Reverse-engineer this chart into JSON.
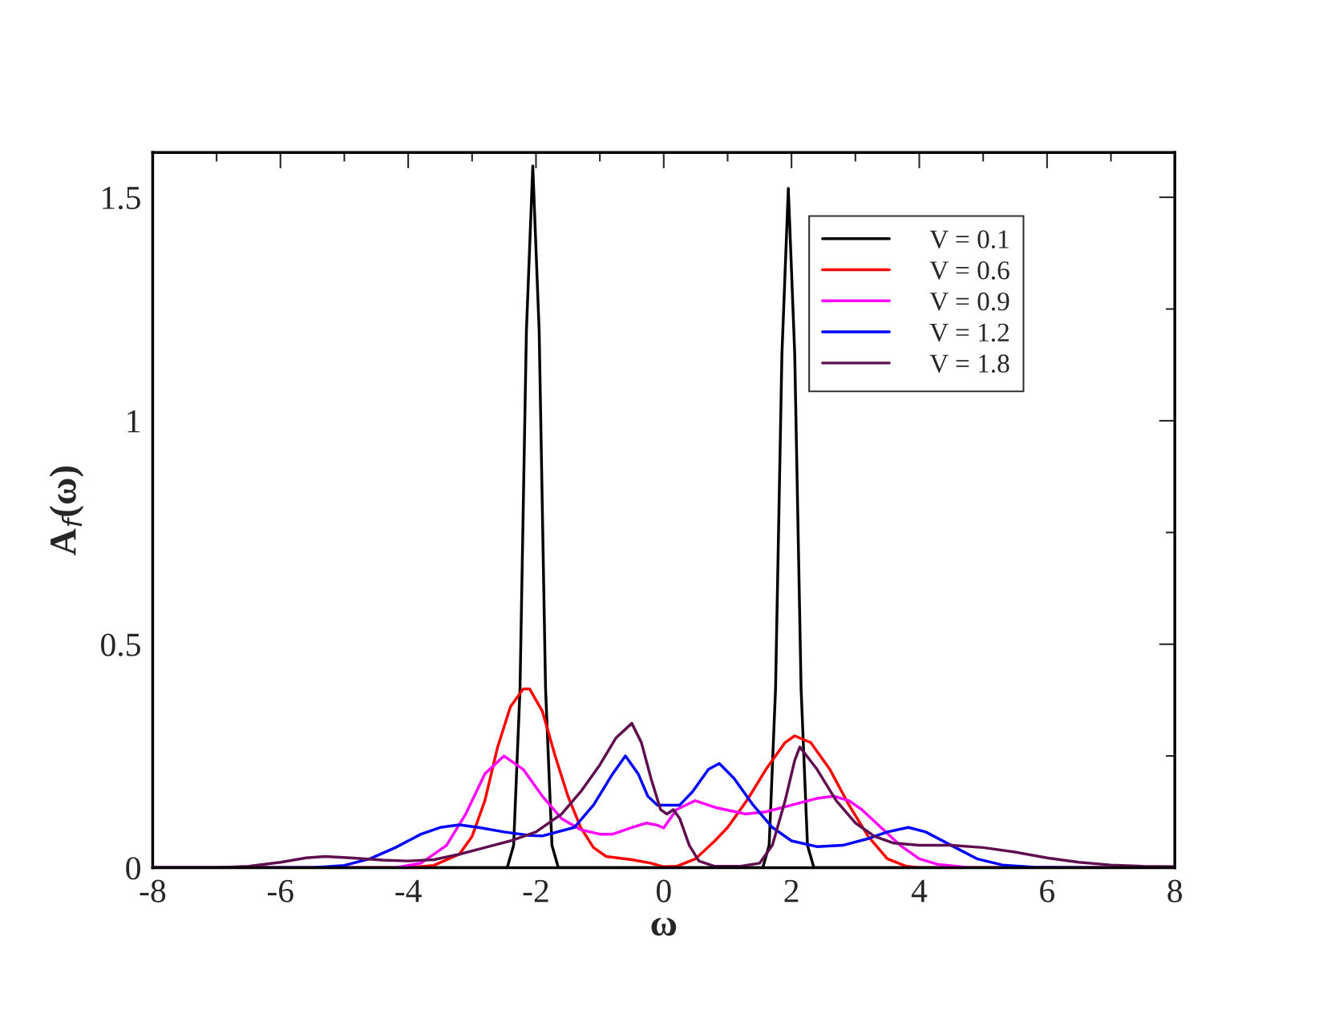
{
  "chart_data": {
    "type": "line",
    "xlabel": "ω",
    "ylabel": "A$_{f}$(ω)",
    "xlim": [
      -8,
      8
    ],
    "ylim": [
      0,
      1.6
    ],
    "xticks": [
      -8,
      {
        "value": -7,
        "label": null
      },
      -6,
      {
        "value": -5,
        "label": null
      },
      -4,
      {
        "value": -3,
        "label": null
      },
      -2,
      {
        "value": -1,
        "label": null
      },
      0,
      {
        "value": 1,
        "label": null
      },
      2,
      {
        "value": 3,
        "label": null
      },
      4,
      {
        "value": 5,
        "label": null
      },
      6,
      {
        "value": 7,
        "label": null
      },
      8
    ],
    "yticks": [
      0,
      {
        "value": 0.25,
        "label": null
      },
      0.5,
      {
        "value": 0.75,
        "label": null
      },
      1,
      {
        "value": 1.25,
        "label": null
      },
      1.5
    ],
    "legend": "top right",
    "grid": false,
    "line_style": "solid",
    "marker": "none",
    "series": [
      {
        "name": "V = 0.1",
        "color": "#000000",
        "x": [
          -8,
          -2.45,
          -2.35,
          -2.25,
          -2.15,
          -2.05,
          -1.95,
          -1.85,
          -1.75,
          -1.65,
          1.55,
          1.65,
          1.75,
          1.85,
          1.95,
          2.05,
          2.15,
          2.25,
          2.35,
          8
        ],
        "values": [
          0,
          0,
          0.05,
          0.4,
          1.2,
          1.57,
          1.2,
          0.4,
          0.05,
          0,
          0,
          0.05,
          0.4,
          1.15,
          1.52,
          1.15,
          0.4,
          0.05,
          0,
          0
        ]
      },
      {
        "name": "V = 0.6",
        "color": "#ff0000",
        "x": [
          -8,
          -4,
          -3.6,
          -3.2,
          -3.0,
          -2.8,
          -2.6,
          -2.4,
          -2.2,
          -2.1,
          -1.9,
          -1.7,
          -1.5,
          -1.3,
          -1.1,
          -0.9,
          -0.5,
          -0.2,
          0,
          0.2,
          0.5,
          0.8,
          1.0,
          1.3,
          1.6,
          1.9,
          2.05,
          2.3,
          2.6,
          2.9,
          3.2,
          3.5,
          3.8,
          4,
          8
        ],
        "values": [
          0,
          0,
          0.005,
          0.03,
          0.07,
          0.15,
          0.27,
          0.36,
          0.4,
          0.4,
          0.35,
          0.25,
          0.16,
          0.09,
          0.045,
          0.025,
          0.018,
          0.01,
          0.002,
          0.003,
          0.02,
          0.06,
          0.09,
          0.15,
          0.22,
          0.28,
          0.295,
          0.28,
          0.22,
          0.14,
          0.07,
          0.02,
          0.003,
          0,
          0
        ]
      },
      {
        "name": "V = 0.9",
        "color": "#ff00ff",
        "x": [
          -8,
          -4.2,
          -3.8,
          -3.4,
          -3.1,
          -2.8,
          -2.5,
          -2.2,
          -1.9,
          -1.6,
          -1.3,
          -1.0,
          -0.8,
          -0.5,
          -0.27,
          -0.1,
          0.0,
          0.2,
          0.49,
          0.8,
          1.28,
          1.6,
          2.0,
          2.4,
          2.66,
          2.9,
          3.1,
          3.4,
          3.7,
          4.0,
          4.3,
          4.8,
          8
        ],
        "values": [
          0,
          0,
          0.01,
          0.05,
          0.12,
          0.21,
          0.25,
          0.22,
          0.16,
          0.11,
          0.085,
          0.075,
          0.075,
          0.09,
          0.1,
          0.095,
          0.089,
          0.13,
          0.15,
          0.135,
          0.12,
          0.125,
          0.14,
          0.155,
          0.16,
          0.15,
          0.13,
          0.09,
          0.05,
          0.02,
          0.007,
          0,
          0
        ]
      },
      {
        "name": "V = 1.2",
        "color": "#0000ff",
        "x": [
          -8,
          -5.5,
          -5,
          -4.6,
          -4.2,
          -3.8,
          -3.5,
          -3.2,
          -2.9,
          -2.5,
          -2.1,
          -1.9,
          -1.4,
          -1.1,
          -0.8,
          -0.6,
          -0.4,
          -0.25,
          -0.1,
          0.1,
          0.25,
          0.45,
          0.7,
          0.87,
          1.1,
          1.4,
          1.7,
          2.0,
          2.4,
          2.8,
          3.2,
          3.5,
          3.83,
          4.1,
          4.5,
          4.9,
          5.3,
          5.8,
          6.5,
          8
        ],
        "values": [
          0,
          0,
          0.005,
          0.02,
          0.045,
          0.075,
          0.09,
          0.096,
          0.09,
          0.08,
          0.072,
          0.071,
          0.09,
          0.14,
          0.21,
          0.25,
          0.21,
          0.16,
          0.14,
          0.14,
          0.14,
          0.17,
          0.22,
          0.233,
          0.2,
          0.14,
          0.09,
          0.06,
          0.047,
          0.05,
          0.065,
          0.08,
          0.09,
          0.08,
          0.05,
          0.02,
          0.006,
          0.001,
          0,
          0
        ]
      },
      {
        "name": "V = 1.8",
        "color": "#5f0f4f",
        "x": [
          -8,
          -7,
          -6.5,
          -6,
          -5.6,
          -5.3,
          -4.9,
          -4.4,
          -4,
          -3.6,
          -3.2,
          -2.8,
          -2.4,
          -2.0,
          -1.6,
          -1.3,
          -1.0,
          -0.75,
          -0.5,
          -0.35,
          -0.2,
          -0.05,
          0.05,
          0.15,
          0.25,
          0.4,
          0.55,
          0.8,
          1.2,
          1.5,
          1.7,
          1.9,
          2.05,
          2.13,
          2.4,
          2.7,
          3.0,
          3.3,
          3.6,
          4.0,
          4.5,
          5.0,
          5.5,
          6.0,
          6.5,
          7,
          7.5,
          8
        ],
        "values": [
          0,
          0,
          0.003,
          0.012,
          0.022,
          0.025,
          0.022,
          0.017,
          0.015,
          0.018,
          0.03,
          0.045,
          0.06,
          0.08,
          0.12,
          0.17,
          0.23,
          0.29,
          0.323,
          0.28,
          0.2,
          0.13,
          0.12,
          0.13,
          0.11,
          0.05,
          0.015,
          0.003,
          0.003,
          0.01,
          0.05,
          0.15,
          0.24,
          0.27,
          0.22,
          0.15,
          0.1,
          0.07,
          0.055,
          0.05,
          0.05,
          0.045,
          0.035,
          0.022,
          0.012,
          0.006,
          0.003,
          0.002
        ]
      }
    ]
  }
}
